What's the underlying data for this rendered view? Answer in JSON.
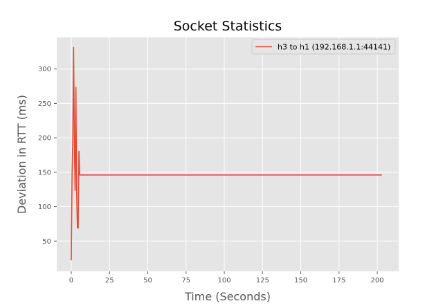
{
  "chart_data": {
    "type": "line",
    "title": "Socket Statistics",
    "xlabel": "Time (Seconds)",
    "ylabel": "Deviation in RTT (ms)",
    "xlim": [
      -9.5,
      214
    ],
    "ylim": [
      6,
      346
    ],
    "xticks": [
      0,
      25,
      50,
      75,
      100,
      125,
      150,
      175,
      200
    ],
    "yticks": [
      50,
      100,
      150,
      200,
      250,
      300
    ],
    "grid": true,
    "legend_position": "top-right",
    "colors": {
      "background": "#e5e5e5",
      "series": "#e24a33",
      "grid": "#ffffff"
    },
    "series": [
      {
        "name": "h3 to h1 (192.168.1.1:44141)",
        "x": [
          0,
          0.5,
          1,
          1.5,
          2,
          2.5,
          3,
          3.5,
          4,
          4.5,
          5,
          5.5,
          6,
          203
        ],
        "y": [
          22,
          148,
          198,
          332,
          194,
          123,
          274,
          122,
          69,
          69,
          181,
          146,
          146,
          146
        ]
      }
    ]
  }
}
